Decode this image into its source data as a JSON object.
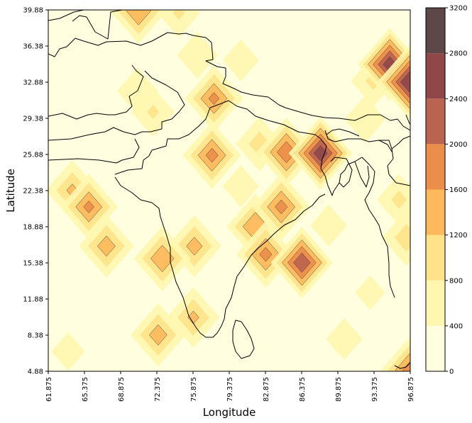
{
  "chart_data": {
    "type": "heatmap",
    "subtype": "filled-contour-map",
    "xlabel": "Longitude",
    "ylabel": "Latitude",
    "xlim": [
      61.875,
      96.875
    ],
    "ylim": [
      4.88,
      39.88
    ],
    "x_ticks": [
      "61.875",
      "65.375",
      "68.875",
      "72.375",
      "75.875",
      "79.375",
      "82.875",
      "86.375",
      "89.875",
      "93.375",
      "96.875"
    ],
    "y_ticks": [
      "4.88",
      "8.38",
      "11.88",
      "15.38",
      "18.88",
      "22.38",
      "25.88",
      "29.38",
      "32.88",
      "36.38",
      "39.88"
    ],
    "colorbar": {
      "levels": [
        0,
        400,
        800,
        1200,
        1600,
        2000,
        2400,
        2800,
        3200
      ],
      "tick_labels": [
        "0",
        "400",
        "800",
        "1200",
        "1600",
        "2000",
        "2400",
        "2800",
        "3200"
      ],
      "colors": [
        "#ffffe0",
        "#fff7b0",
        "#ffe28a",
        "#ffb85c",
        "#eb8d4b",
        "#ba6350",
        "#8f4749",
        "#5c4848"
      ]
    },
    "hotspots": [
      {
        "lon": 88.2,
        "lat": 26.0,
        "value": 2600
      },
      {
        "lon": 86.4,
        "lat": 15.4,
        "value": 2300
      },
      {
        "lon": 84.9,
        "lat": 26.1,
        "value": 1900
      },
      {
        "lon": 77.9,
        "lat": 31.3,
        "value": 1650
      },
      {
        "lon": 84.4,
        "lat": 20.8,
        "value": 1700
      },
      {
        "lon": 82.9,
        "lat": 16.2,
        "value": 1700
      },
      {
        "lon": 81.9,
        "lat": 18.9,
        "value": 1600
      },
      {
        "lon": 77.7,
        "lat": 25.8,
        "value": 1700
      },
      {
        "lon": 65.8,
        "lat": 20.8,
        "value": 1650
      },
      {
        "lon": 64.2,
        "lat": 22.4,
        "value": 1250
      },
      {
        "lon": 72.9,
        "lat": 15.8,
        "value": 1550
      },
      {
        "lon": 67.5,
        "lat": 17.0,
        "value": 1400
      },
      {
        "lon": 76.0,
        "lat": 17.0,
        "value": 1350
      },
      {
        "lon": 72.5,
        "lat": 8.4,
        "value": 1400
      },
      {
        "lon": 75.9,
        "lat": 10.1,
        "value": 1250
      },
      {
        "lon": 94.9,
        "lat": 34.6,
        "value": 2600
      },
      {
        "lon": 96.8,
        "lat": 32.9,
        "value": 2800
      },
      {
        "lon": 96.9,
        "lat": 5.0,
        "value": 1800
      },
      {
        "lon": 70.6,
        "lat": 39.8,
        "value": 1600
      },
      {
        "lon": 82.3,
        "lat": 26.9,
        "value": 1000
      },
      {
        "lon": 96.5,
        "lat": 17.8,
        "value": 1050
      },
      {
        "lon": 95.8,
        "lat": 21.5,
        "value": 900
      },
      {
        "lon": 72.0,
        "lat": 30.0,
        "value": 850
      },
      {
        "lon": 93.3,
        "lat": 33.0,
        "value": 900
      },
      {
        "lon": 76.3,
        "lat": 35.5,
        "value": 800
      },
      {
        "lon": 74.5,
        "lat": 39.6,
        "value": 850
      },
      {
        "lon": 92.5,
        "lat": 29.3,
        "value": 800
      },
      {
        "lon": 70.5,
        "lat": 32.0,
        "value": 800
      },
      {
        "lon": 80.5,
        "lat": 35.0,
        "value": 700
      },
      {
        "lon": 89.0,
        "lat": 19.0,
        "value": 700
      },
      {
        "lon": 90.5,
        "lat": 8.0,
        "value": 700
      },
      {
        "lon": 80.5,
        "lat": 22.8,
        "value": 700
      },
      {
        "lon": 63.8,
        "lat": 6.8,
        "value": 650
      },
      {
        "lon": 93.0,
        "lat": 12.5,
        "value": 600
      }
    ]
  }
}
